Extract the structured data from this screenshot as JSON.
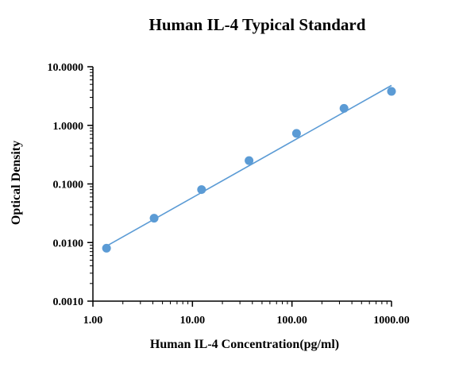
{
  "chart_data": {
    "type": "scatter",
    "title": "Human IL-4  Typical  Standard",
    "xlabel": "Human IL-4 Concentration(pg/ml)",
    "ylabel": "Optical Density",
    "x_scale": "log",
    "y_scale": "log",
    "xlim": [
      1,
      1000
    ],
    "ylim": [
      0.001,
      10
    ],
    "x_ticks": [
      1,
      10,
      100,
      1000
    ],
    "x_tick_labels": [
      "1.00",
      "10.00",
      "100.00",
      "1000.00"
    ],
    "y_ticks": [
      0.001,
      0.01,
      0.1,
      1,
      10
    ],
    "y_tick_labels": [
      "0.0010",
      "0.0100",
      "0.1000",
      "1.0000",
      "10.0000"
    ],
    "grid": false,
    "legend": "none",
    "colors": {
      "points": "#5b9bd5",
      "line": "#5b9bd5",
      "axis": "#000000"
    },
    "series": [
      {
        "x": [
          1.37,
          4.12,
          12.35,
          37.04,
          111.11,
          333.33,
          1000
        ],
        "y": [
          0.008,
          0.026,
          0.08,
          0.25,
          0.73,
          1.95,
          3.8
        ]
      }
    ],
    "fit_line": {
      "x": [
        1.37,
        1000
      ],
      "y": [
        0.0087,
        4.8
      ]
    }
  }
}
